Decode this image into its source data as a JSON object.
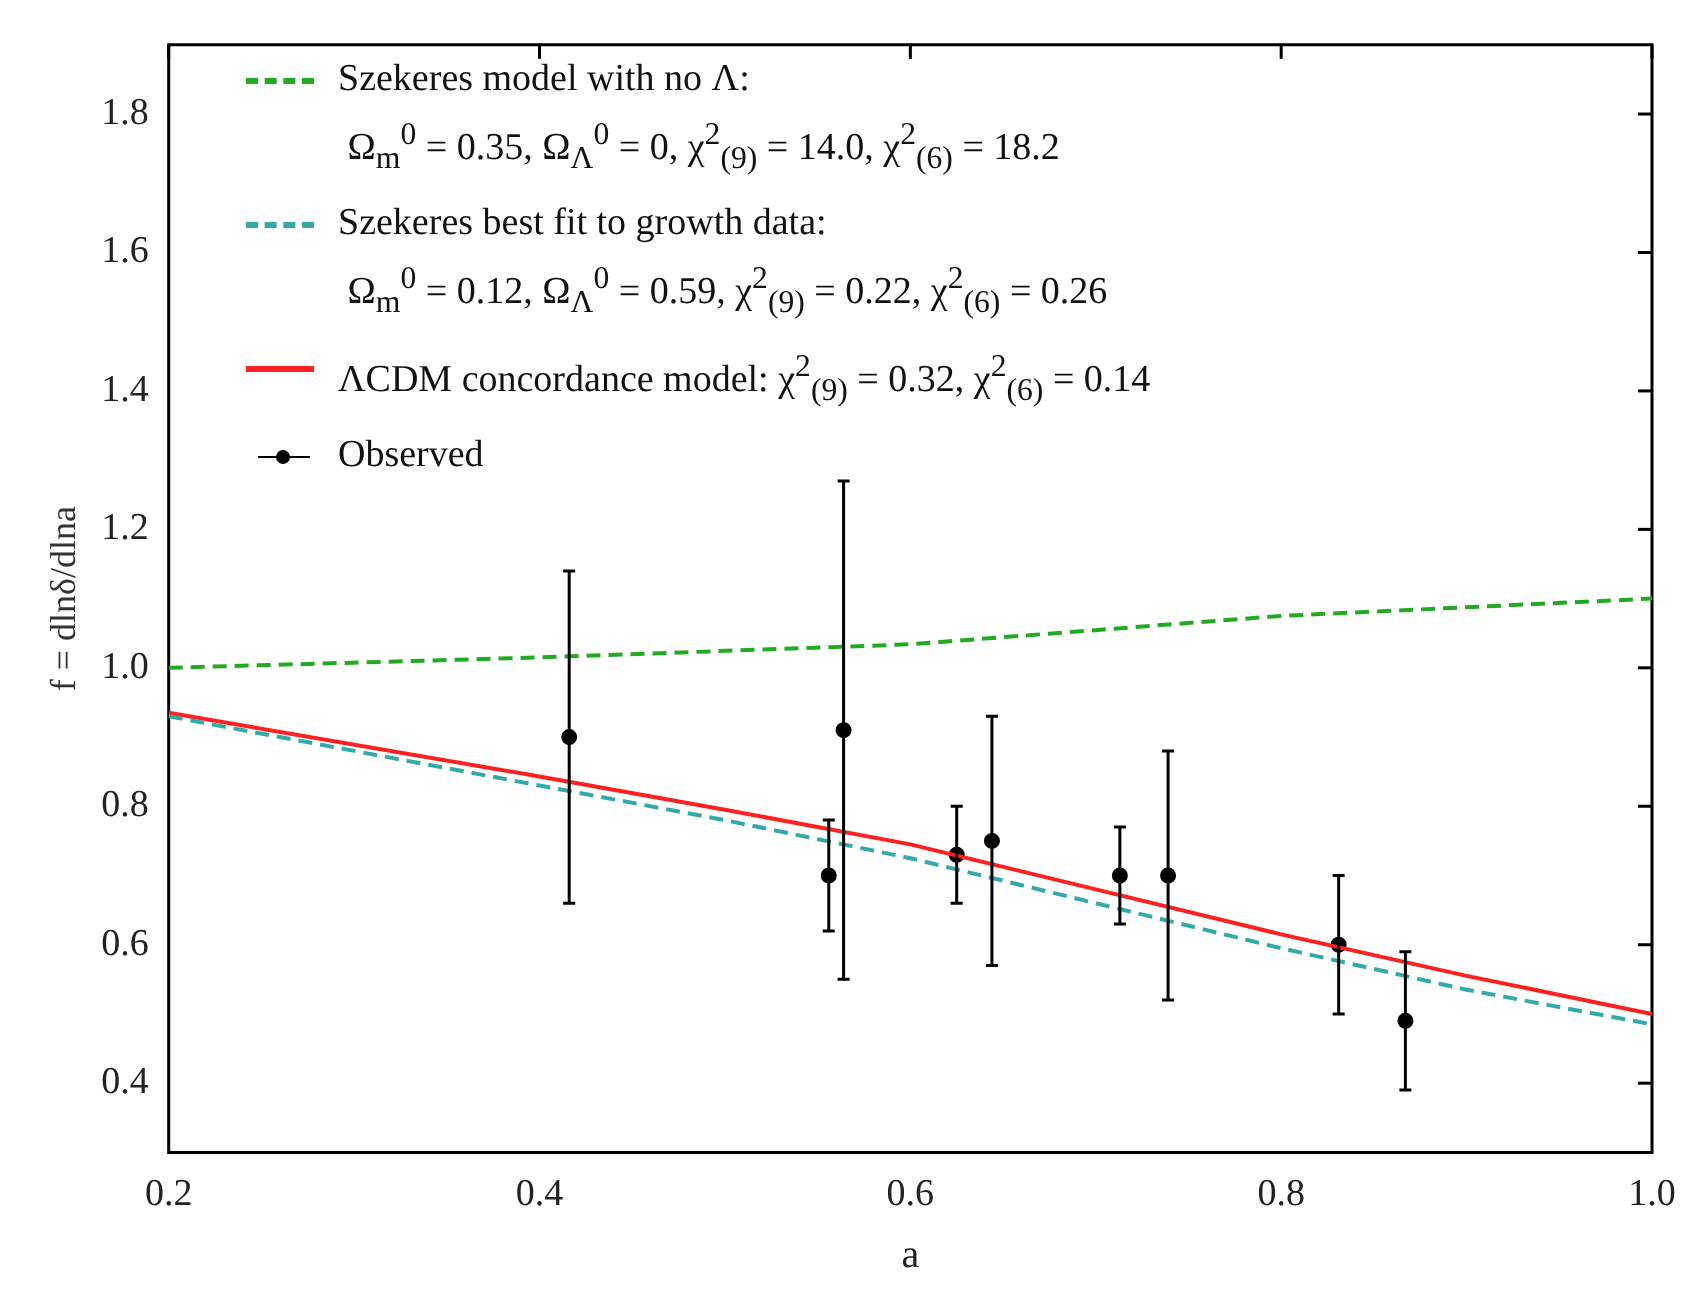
{
  "chart_data": {
    "type": "line",
    "xlabel": "a",
    "ylabel": "f = dlnδ/dlna",
    "xlim": [
      0.2,
      1.0
    ],
    "ylim": [
      0.3,
      1.9
    ],
    "xticks": [
      0.2,
      0.4,
      0.6,
      0.8,
      {
        "value": 1,
        "label": "1.0"
      }
    ],
    "yticks": [
      0.4,
      0.6,
      0.8,
      {
        "value": 1,
        "label": "1.0"
      },
      1.2,
      1.4,
      1.6,
      1.8
    ],
    "grid": false,
    "legend": "top left",
    "series": [
      {
        "name": "Szekeres model with no Λ:\nΩ$_{m}$$^{0}$ = 0.35, Ω$_{Λ}$$^{0}$ = 0, χ$^{2}$$_{(9)}$ = 14.0, χ$^{2}$$_{(6)}$ = 18.2",
        "type": "line",
        "color": "#22aa22",
        "line_style": "dashed",
        "marker": "none",
        "x": [
          0.2,
          0.4,
          0.6,
          0.8,
          1.0
        ],
        "values": [
          1.0,
          1.015,
          1.034,
          1.075,
          1.1
        ]
      },
      {
        "name": "Szekeres best fit to growth data:\nΩ$_{m}$$^{0}$ = 0.12, Ω$_{Λ}$$^{0}$ = 0.59, χ$^{2}$$_{(9)}$ = 0.22, χ$^{2}$$_{(6)}$ = 0.26",
        "type": "line",
        "color": "#33aaaa",
        "line_style": "dashed",
        "marker": "none",
        "x": [
          0.2,
          0.4,
          0.5,
          0.6,
          0.7,
          0.8,
          0.9,
          1.0
        ],
        "values": [
          0.93,
          0.83,
          0.78,
          0.725,
          0.66,
          0.595,
          0.535,
          0.485
        ]
      },
      {
        "name": "ΛCDM concordance model: χ$^{2}$$_{(9)}$ = 0.32, χ$^{2}$$_{(6)}$ = 0.14",
        "type": "line",
        "color": "#ff2020",
        "line_style": "solid",
        "marker": "none",
        "x": [
          0.2,
          0.4,
          0.5,
          0.6,
          0.7,
          0.8,
          0.9,
          1.0
        ],
        "values": [
          0.935,
          0.843,
          0.795,
          0.745,
          0.68,
          0.615,
          0.555,
          0.5
        ]
      },
      {
        "name": "Observed",
        "type": "scatter",
        "color": "#000000",
        "marker": "circle",
        "x": [
          0.416,
          0.556,
          0.564,
          0.625,
          0.644,
          0.713,
          0.739,
          0.831,
          0.867
        ],
        "values": [
          0.9,
          0.7,
          0.91,
          0.73,
          0.75,
          0.7,
          0.7,
          0.6,
          0.49
        ],
        "errors": [
          [
            0.66,
            1.14
          ],
          [
            0.62,
            0.78
          ],
          [
            0.55,
            1.27
          ],
          [
            0.66,
            0.8
          ],
          [
            0.57,
            0.93
          ],
          [
            0.63,
            0.77
          ],
          [
            0.52,
            0.88
          ],
          [
            0.5,
            0.7
          ],
          [
            0.39,
            0.59
          ]
        ]
      }
    ]
  }
}
